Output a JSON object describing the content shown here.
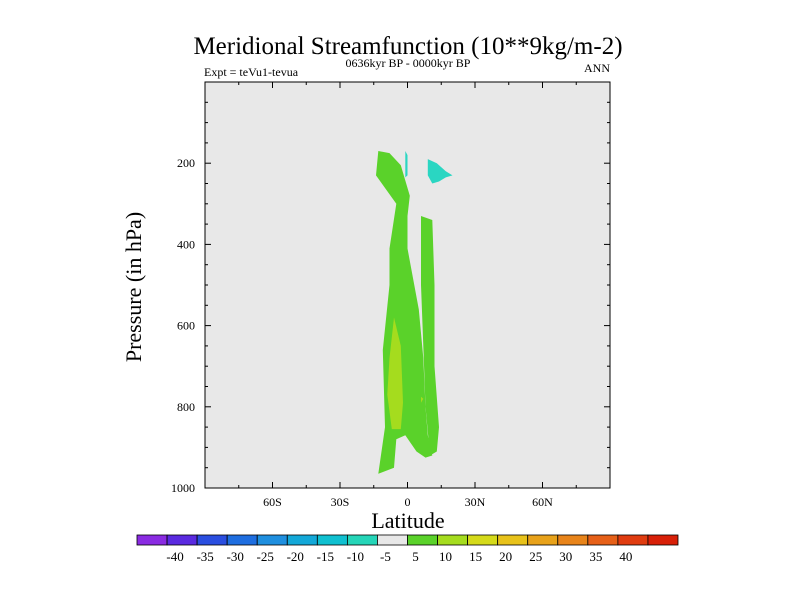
{
  "chart_data": {
    "type": "contour",
    "title": "Meridional Streamfunction (10**9kg/m-2)",
    "subtitle_left": "Expt = teVu1-tevua",
    "subtitle_center": "0636kyr BP - 0000kyr BP",
    "subtitle_right": "ANN",
    "xlabel": "Latitude",
    "ylabel": "Pressure (in hPa)",
    "xlim": [
      -90,
      90
    ],
    "ylim": [
      1000,
      0
    ],
    "x_ticks": [
      {
        "value": -60,
        "label": "60S"
      },
      {
        "value": -30,
        "label": "30S"
      },
      {
        "value": 0,
        "label": "0"
      },
      {
        "value": 30,
        "label": "30N"
      },
      {
        "value": 60,
        "label": "60N"
      }
    ],
    "y_ticks": [
      {
        "value": 200,
        "label": "200"
      },
      {
        "value": 400,
        "label": "400"
      },
      {
        "value": 600,
        "label": "600"
      },
      {
        "value": 800,
        "label": "800"
      },
      {
        "value": 1000,
        "label": "1000"
      }
    ],
    "background_color": "#e8e8e8",
    "contour_regions": [
      {
        "level": 5,
        "color": "#5ad22a",
        "points": [
          [
            -13,
            965
          ],
          [
            -10,
            850
          ],
          [
            -11,
            660
          ],
          [
            -8,
            500
          ],
          [
            -8,
            410
          ],
          [
            -5,
            300
          ],
          [
            -14,
            230
          ],
          [
            -13,
            170
          ],
          [
            -8,
            175
          ],
          [
            -3,
            205
          ],
          [
            1,
            280
          ],
          [
            0,
            330
          ],
          [
            0,
            410
          ],
          [
            5,
            560
          ],
          [
            7,
            680
          ],
          [
            8,
            800
          ],
          [
            9,
            870
          ],
          [
            11,
            920
          ],
          [
            8,
            925
          ],
          [
            4,
            910
          ],
          [
            -1,
            870
          ],
          [
            -5,
            880
          ],
          [
            -6,
            950
          ]
        ]
      },
      {
        "level": 5,
        "color": "#5ad22a",
        "points": [
          [
            6,
            330
          ],
          [
            11,
            340
          ],
          [
            12,
            500
          ],
          [
            12,
            700
          ],
          [
            14,
            850
          ],
          [
            13,
            910
          ],
          [
            10,
            920
          ],
          [
            8,
            800
          ],
          [
            7,
            650
          ],
          [
            6,
            500
          ]
        ]
      },
      {
        "level": 10,
        "color": "#a5dc1e",
        "points": [
          [
            -9,
            770
          ],
          [
            -8,
            680
          ],
          [
            -6,
            580
          ],
          [
            -3,
            650
          ],
          [
            -2,
            790
          ],
          [
            -3,
            855
          ],
          [
            -7,
            855
          ]
        ]
      },
      {
        "level": 10,
        "color": "#a5dc1e",
        "points": [
          [
            6,
            775
          ],
          [
            7,
            780
          ],
          [
            6,
            790
          ],
          [
            6,
            785
          ]
        ]
      },
      {
        "level": -5,
        "color": "#2ad6c2",
        "points": [
          [
            9,
            190
          ],
          [
            13,
            200
          ],
          [
            17,
            220
          ],
          [
            20,
            230
          ],
          [
            17,
            235
          ],
          [
            14,
            245
          ],
          [
            11,
            250
          ],
          [
            9,
            230
          ]
        ]
      },
      {
        "level": -5,
        "color": "#2ad6c2",
        "points": [
          [
            -1,
            170
          ],
          [
            0,
            180
          ],
          [
            0,
            230
          ],
          [
            -1,
            235
          ]
        ]
      }
    ],
    "colorbar": {
      "colors": [
        "#8a2be2",
        "#5a2ae0",
        "#2a4ee0",
        "#1e6ee0",
        "#1f8fdf",
        "#13a8d8",
        "#10c0d0",
        "#25d5b8",
        "#e8e8e8",
        "#5ad22a",
        "#a5dc1e",
        "#d5da1a",
        "#e8c21a",
        "#e8a21a",
        "#e8841a",
        "#e66018",
        "#e03c10",
        "#d82008"
      ],
      "labels": [
        "-40",
        "-35",
        "-30",
        "-25",
        "-20",
        "-15",
        "-10",
        "-5",
        "5",
        "10",
        "15",
        "20",
        "25",
        "30",
        "35",
        "40"
      ]
    }
  }
}
